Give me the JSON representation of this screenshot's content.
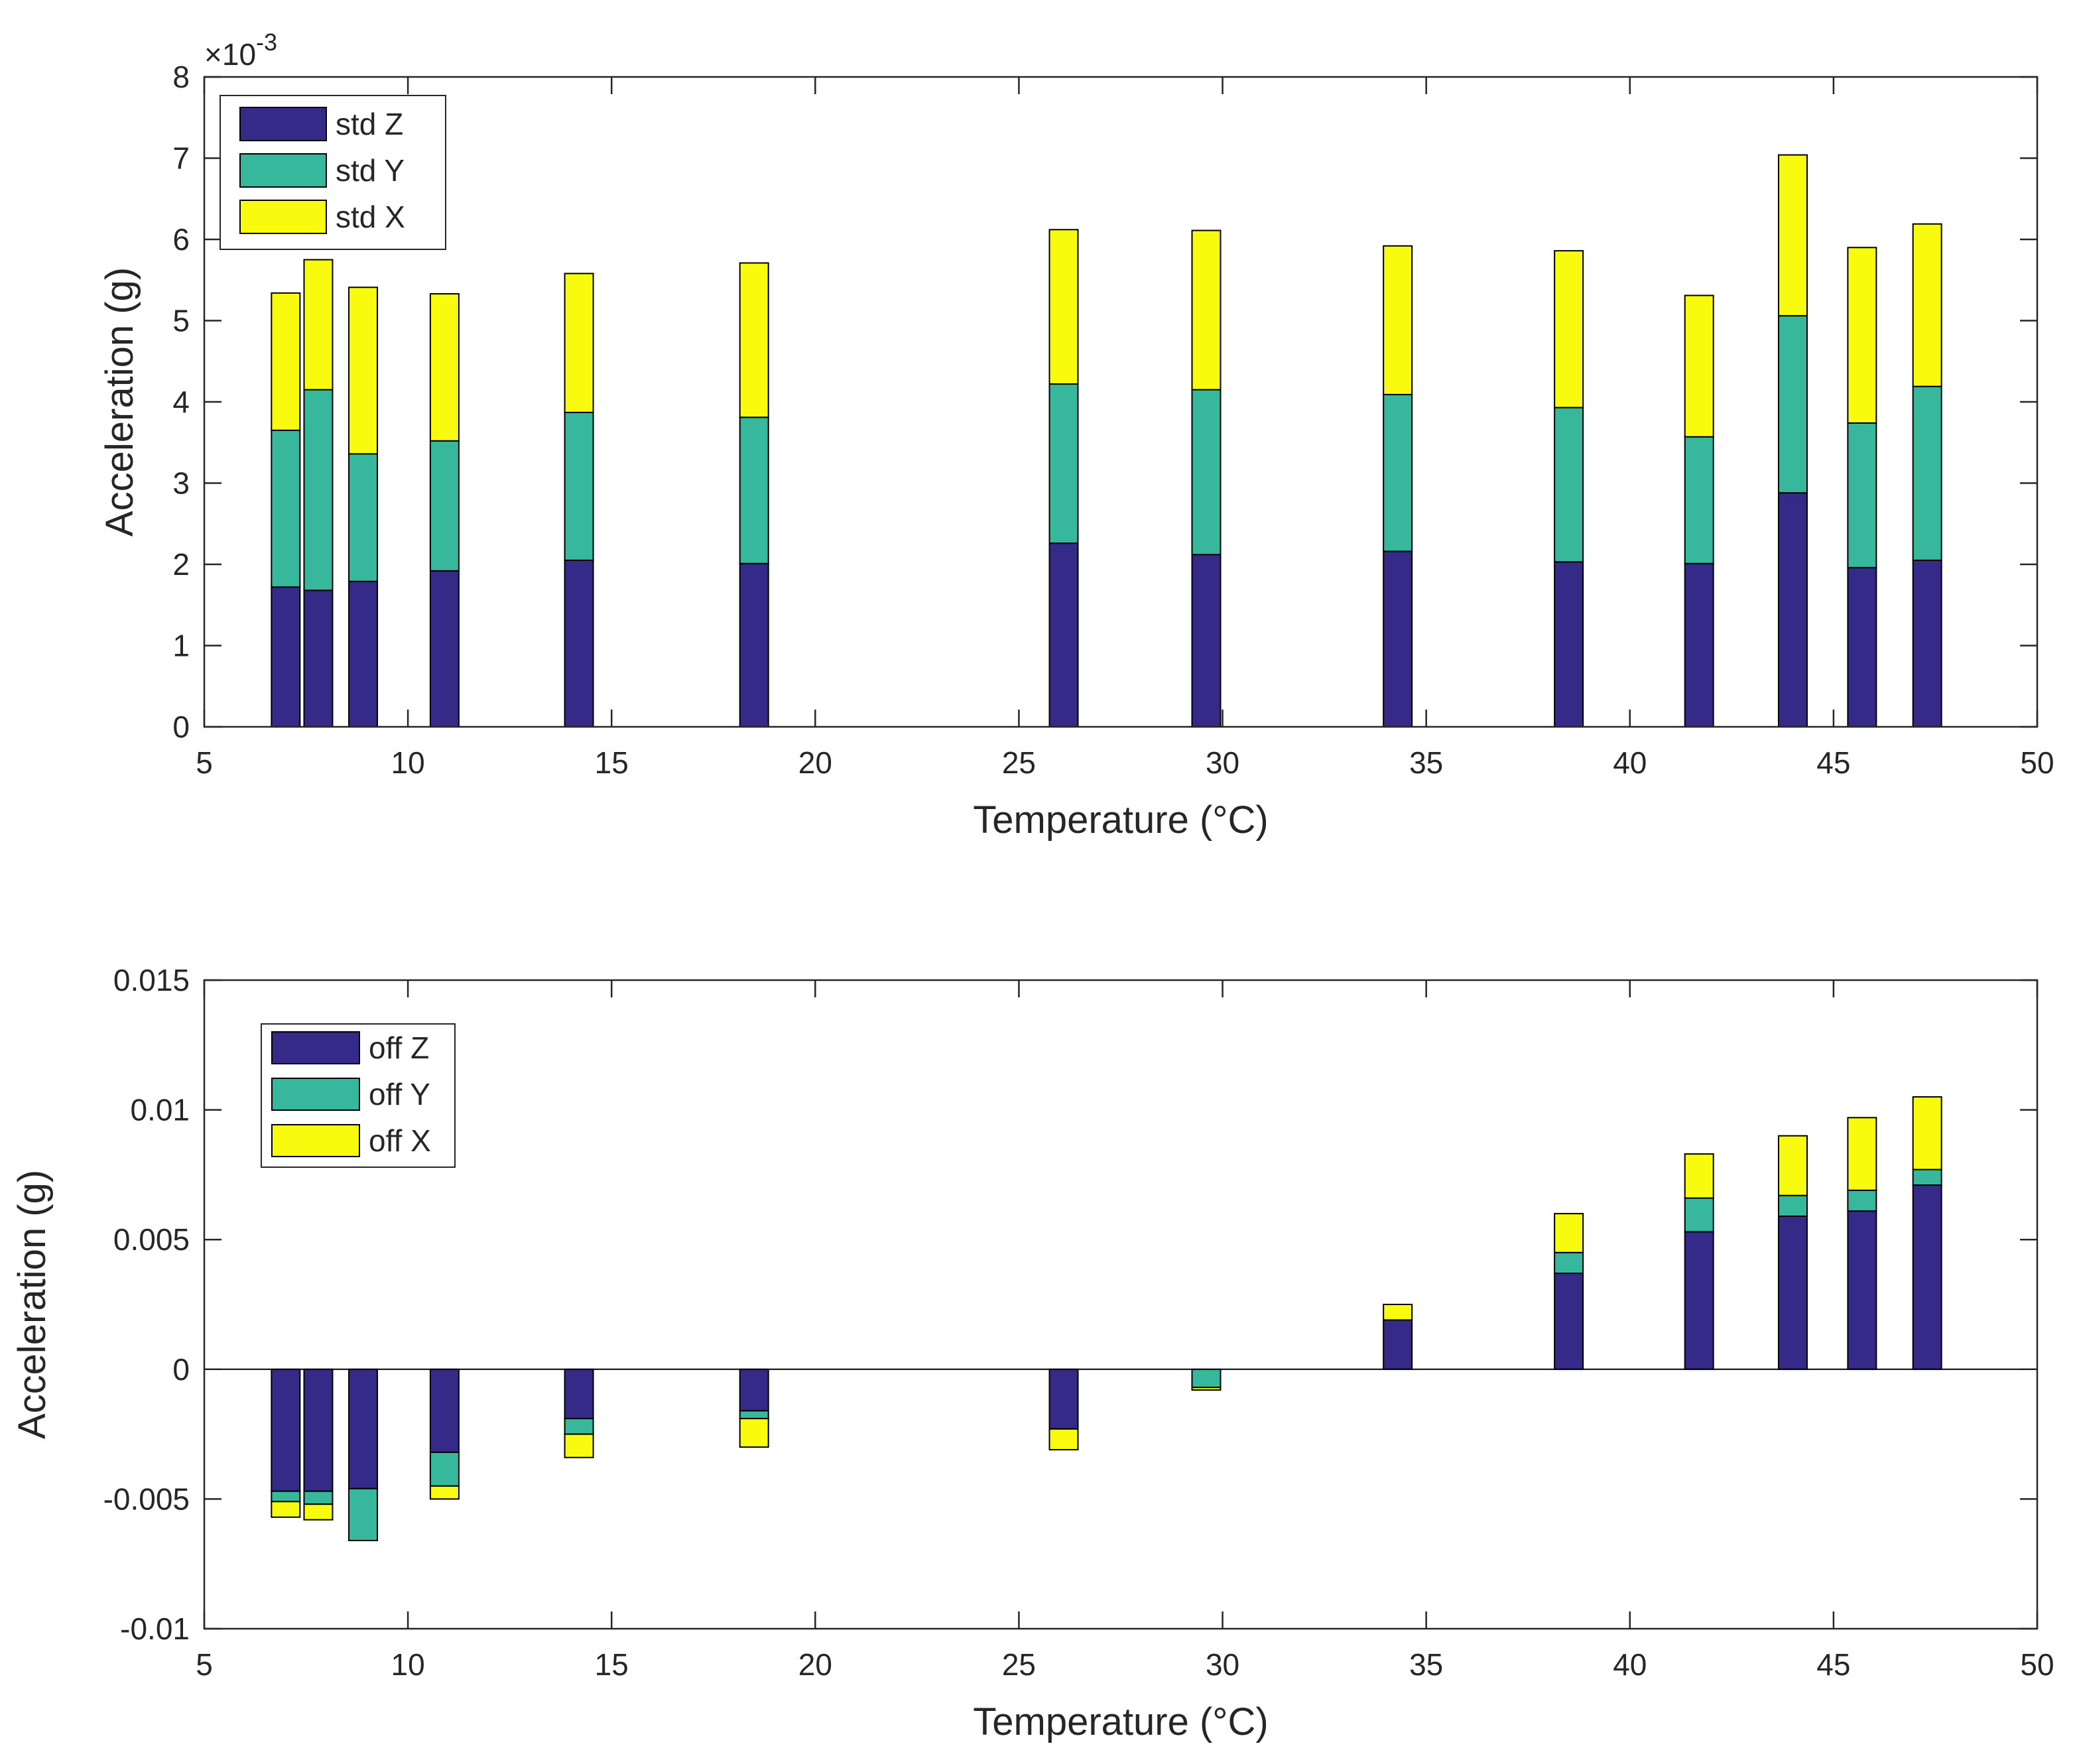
{
  "chart_data": [
    {
      "type": "bar",
      "stacked": true,
      "xlabel": "Temperature (°C)",
      "ylabel": "Acceleration (g)",
      "xlim": [
        5,
        50
      ],
      "ylim": [
        0,
        0.008
      ],
      "xticks": [
        5,
        10,
        15,
        20,
        25,
        30,
        35,
        40,
        45,
        50
      ],
      "yticks": [
        0,
        0.001,
        0.002,
        0.003,
        0.004,
        0.005,
        0.006,
        0.007,
        0.008
      ],
      "ytick_labels": [
        "0",
        "1",
        "2",
        "3",
        "4",
        "5",
        "6",
        "7",
        "8"
      ],
      "exponent_label": "×10",
      "exponent_power": "-3",
      "legend_position": "top-left",
      "x": [
        7.0,
        7.8,
        8.9,
        10.9,
        14.2,
        18.5,
        26.1,
        29.6,
        34.3,
        38.5,
        41.7,
        44.0,
        45.7,
        47.3
      ],
      "bar_width": 0.7,
      "series": [
        {
          "name": "std Z",
          "color": "#352a87",
          "values": [
            0.00172,
            0.00168,
            0.00179,
            0.00192,
            0.00205,
            0.00201,
            0.00226,
            0.00212,
            0.00216,
            0.00203,
            0.00201,
            0.00288,
            0.00196,
            0.00205
          ]
        },
        {
          "name": "std Y",
          "color": "#37b89d",
          "values": [
            0.00193,
            0.00247,
            0.00157,
            0.0016,
            0.00182,
            0.0018,
            0.00196,
            0.00203,
            0.00193,
            0.0019,
            0.00156,
            0.00218,
            0.00178,
            0.00214
          ]
        },
        {
          "name": "std X",
          "color": "#f9fb0e",
          "values": [
            0.00169,
            0.0016,
            0.00205,
            0.00181,
            0.00171,
            0.0019,
            0.0019,
            0.00196,
            0.00183,
            0.00193,
            0.00174,
            0.00198,
            0.00216,
            0.002
          ]
        }
      ]
    },
    {
      "type": "bar",
      "stacked": true,
      "xlabel": "Temperature (°C)",
      "ylabel": "Acceleration (g)",
      "xlim": [
        5,
        50
      ],
      "ylim": [
        -0.01,
        0.015
      ],
      "xticks": [
        5,
        10,
        15,
        20,
        25,
        30,
        35,
        40,
        45,
        50
      ],
      "yticks": [
        -0.01,
        -0.005,
        0,
        0.005,
        0.01,
        0.015
      ],
      "ytick_labels": [
        "-0.01",
        "-0.005",
        "0",
        "0.005",
        "0.01",
        "0.015"
      ],
      "zero_line": true,
      "legend_position": "top-left",
      "x": [
        7.0,
        7.8,
        8.9,
        10.9,
        14.2,
        18.5,
        26.1,
        29.6,
        34.3,
        38.5,
        41.7,
        44.0,
        45.7,
        47.3
      ],
      "bar_width": 0.7,
      "series": [
        {
          "name": "off Z",
          "color": "#352a87",
          "values": [
            -0.0047,
            -0.0047,
            -0.0046,
            -0.0032,
            -0.0019,
            -0.0016,
            -0.0023,
            0.0,
            0.0019,
            0.0037,
            0.0053,
            0.0059,
            0.0061,
            0.0071
          ]
        },
        {
          "name": "off Y",
          "color": "#37b89d",
          "values": [
            -0.0004,
            -0.0005,
            -0.002,
            -0.0013,
            -0.0006,
            -0.0003,
            0.0,
            -0.0007,
            0.0,
            0.0008,
            0.0013,
            0.0008,
            0.0008,
            0.0006
          ]
        },
        {
          "name": "off X",
          "color": "#f9fb0e",
          "values": [
            -0.0006,
            -0.0006,
            0.0,
            -0.0005,
            -0.0009,
            -0.0011,
            -0.0008,
            -0.0001,
            0.0006,
            0.0015,
            0.0017,
            0.0023,
            0.0028,
            0.0028
          ]
        }
      ]
    }
  ]
}
